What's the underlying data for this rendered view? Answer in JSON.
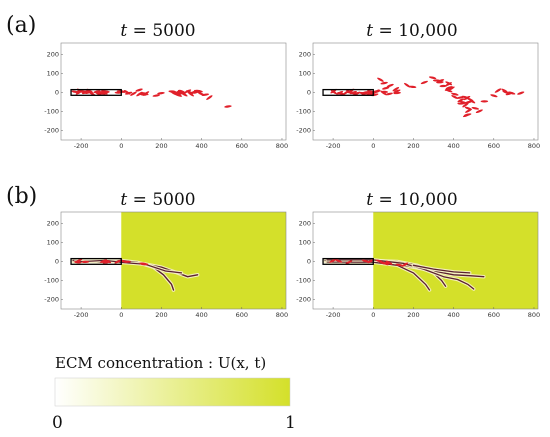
{
  "panels": [
    {
      "label": "(a)",
      "plots": [
        {
          "title_var": "t",
          "title_eq": " = ",
          "title_val": "5000",
          "ecm": false
        },
        {
          "title_var": "t",
          "title_eq": " = ",
          "title_val": "10,000",
          "ecm": false
        }
      ]
    },
    {
      "label": "(b)",
      "plots": [
        {
          "title_var": "t",
          "title_eq": " = ",
          "title_val": "5000",
          "ecm": true
        },
        {
          "title_var": "t",
          "title_eq": " = ",
          "title_val": "10,000",
          "ecm": true
        }
      ]
    }
  ],
  "axes": {
    "x_ticks": [
      "-200",
      "0",
      "200",
      "400",
      "600",
      "800"
    ],
    "y_ticks": [
      "200",
      "100",
      "0",
      "-100",
      "-200"
    ]
  },
  "colorbar": {
    "label": "ECM concentration : U(x, t)",
    "min_label": "0",
    "max_label": "1",
    "color_low": "#ffffff",
    "color_high": "#d4e02a"
  },
  "colors": {
    "cell_red": "#e0202a",
    "ecm_yellow": "#d4e02a",
    "trail_dark": "#5a2030",
    "box_black": "#000000"
  }
}
